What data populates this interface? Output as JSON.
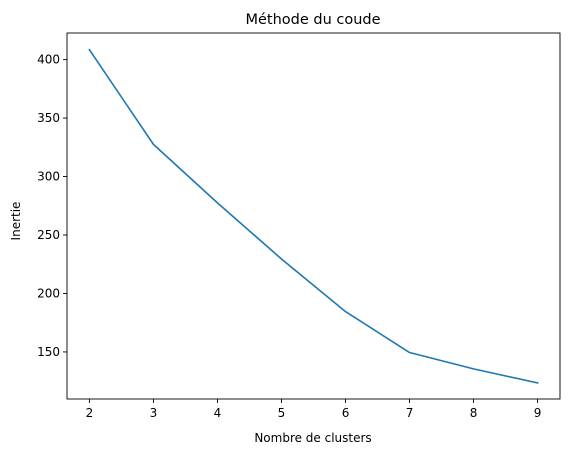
{
  "chart_data": {
    "type": "line",
    "title": "Méthode du coude",
    "xlabel": "Nombre de clusters",
    "ylabel": "Inertie",
    "x": [
      2,
      3,
      4,
      5,
      6,
      7,
      8,
      9
    ],
    "series": [
      {
        "values": [
          408.5,
          327.5,
          277.5,
          229.5,
          184.5,
          149.5,
          135.5,
          123.5
        ],
        "color": "#1f77b4"
      }
    ],
    "xlim": [
      1.65,
      9.35
    ],
    "ylim": [
      109.75,
      422.75
    ],
    "xticks": [
      2,
      3,
      4,
      5,
      6,
      7,
      8,
      9
    ],
    "yticks": [
      150,
      200,
      250,
      300,
      350,
      400
    ],
    "grid": false,
    "legend": "none"
  }
}
